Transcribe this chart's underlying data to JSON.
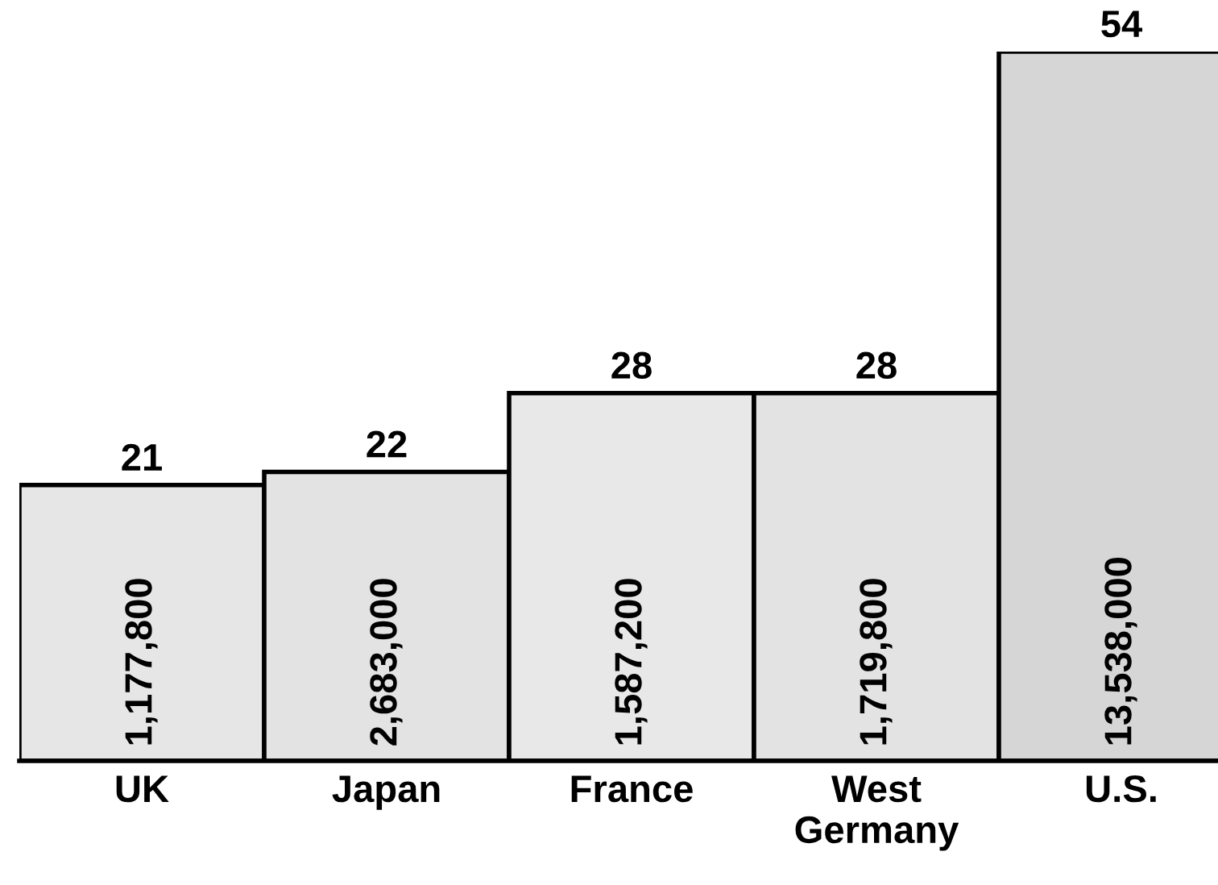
{
  "chart_data": {
    "type": "bar",
    "categories": [
      "UK",
      "Japan",
      "France",
      "West\nGermany",
      "U.S."
    ],
    "values": [
      21,
      22,
      28,
      28,
      54
    ],
    "colors": [
      "#e6e6e6",
      "#e3e3e3",
      "#e8e8e8",
      "#e3e3e3",
      "#d6d6d6"
    ],
    "data_labels": true,
    "grid": false,
    "annotations": [
      "1,177,800",
      "2,683,000",
      "1,587,200",
      "1,719,800",
      "13,538,000"
    ]
  }
}
